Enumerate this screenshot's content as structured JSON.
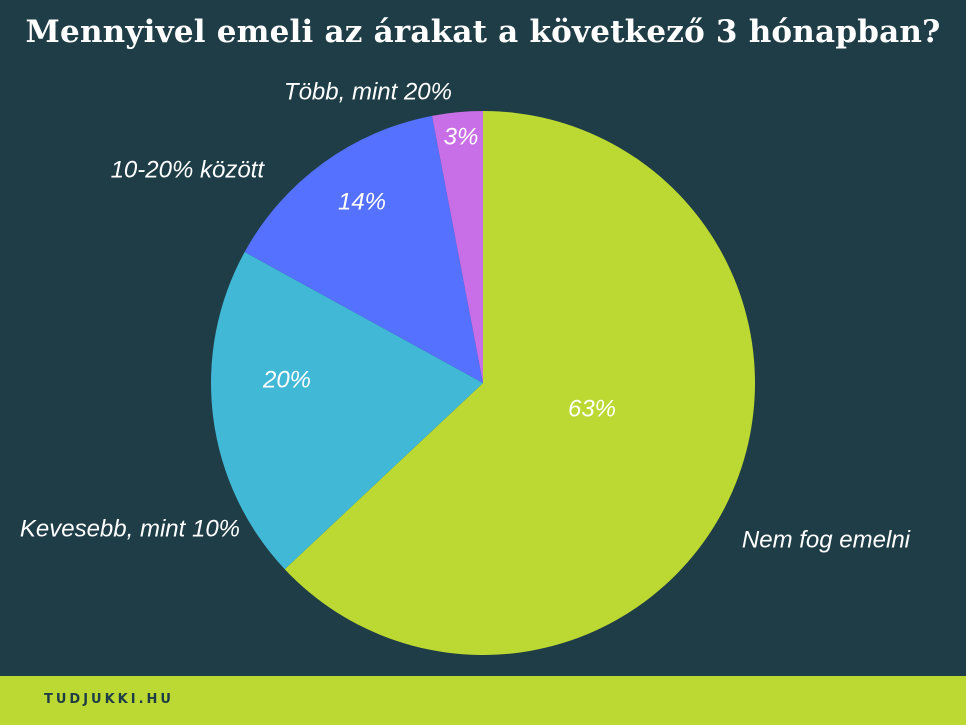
{
  "header": {
    "title": "Mennyivel emeli az árakat a következő 3 hónapban?"
  },
  "footer": {
    "brand": "TUDJUKKI.HU",
    "color": "#bcd832"
  },
  "colors": {
    "background": "#1f3d47",
    "text": "#ffffff"
  },
  "chart_data": {
    "type": "pie",
    "start_angle_deg": 0,
    "direction": "clockwise",
    "slices": [
      {
        "label": "Nem fog emelni",
        "value": 63,
        "display": "63%",
        "color": "#bcd832"
      },
      {
        "label": "Kevesebb, mint 10%",
        "value": 20,
        "display": "20%",
        "color": "#41b8d6"
      },
      {
        "label": "10-20% között",
        "value": 14,
        "display": "14%",
        "color": "#5571ff"
      },
      {
        "label": "Több, mint 20%",
        "value": 3,
        "display": "3%",
        "color": "#c86ee6"
      }
    ]
  }
}
